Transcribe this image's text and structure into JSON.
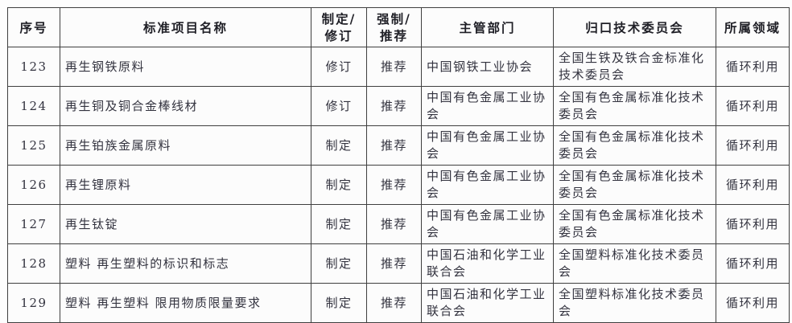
{
  "document": {
    "kind": "standard-projects-table",
    "colors": {
      "border": "#3f3f3f",
      "text": "#33333f",
      "header_text": "#1f1f26",
      "background": "#fdfdfd"
    }
  },
  "table": {
    "headers": [
      {
        "key": "no",
        "label": "序号"
      },
      {
        "key": "name",
        "label": "标准项目名称"
      },
      {
        "key": "action",
        "label": "制定/\n修订"
      },
      {
        "key": "type",
        "label": "强制/\n推荐"
      },
      {
        "key": "department",
        "label": "主管部门"
      },
      {
        "key": "committee",
        "label": "归口技术委员会"
      },
      {
        "key": "field",
        "label": "所属领域"
      }
    ],
    "rows": [
      {
        "no": "123",
        "name": "再生钢铁原料",
        "action": "修订",
        "type": "推荐",
        "department": "中国钢铁工业协会",
        "committee": "全国生铁及铁合金标准化技术委员会",
        "field": "循环利用"
      },
      {
        "no": "124",
        "name": "再生铜及铜合金棒线材",
        "action": "修订",
        "type": "推荐",
        "department": "中国有色金属工业协会",
        "committee": "全国有色金属标准化技术委员会",
        "field": "循环利用"
      },
      {
        "no": "125",
        "name": "再生铂族金属原料",
        "action": "制定",
        "type": "推荐",
        "department": "中国有色金属工业协会",
        "committee": "全国有色金属标准化技术委员会",
        "field": "循环利用"
      },
      {
        "no": "126",
        "name": "再生锂原料",
        "action": "制定",
        "type": "推荐",
        "department": "中国有色金属工业协会",
        "committee": "全国有色金属标准化技术委员会",
        "field": "循环利用"
      },
      {
        "no": "127",
        "name": "再生钛锭",
        "action": "制定",
        "type": "推荐",
        "department": "中国有色金属工业协会",
        "committee": "全国有色金属标准化技术委员会",
        "field": "循环利用"
      },
      {
        "no": "128",
        "name": "塑料 再生塑料的标识和标志",
        "action": "制定",
        "type": "推荐",
        "department": "中国石油和化学工业联合会",
        "committee": "全国塑料标准化技术委员会",
        "field": "循环利用"
      },
      {
        "no": "129",
        "name": "塑料 再生塑料 限用物质限量要求",
        "action": "制定",
        "type": "推荐",
        "department": "中国石油和化学工业联合会",
        "committee": "全国塑料标准化技术委员会",
        "field": "循环利用"
      }
    ]
  }
}
